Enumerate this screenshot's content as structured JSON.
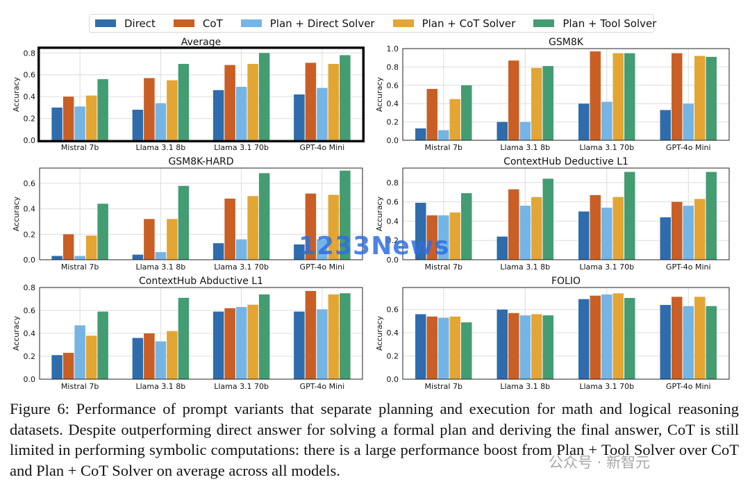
{
  "legend": [
    {
      "name": "Direct",
      "color": "#2f6cab"
    },
    {
      "name": "CoT",
      "color": "#c95f25"
    },
    {
      "name": "Plan + Direct Solver",
      "color": "#75b5e6"
    },
    {
      "name": "Plan + CoT Solver",
      "color": "#e3a534"
    },
    {
      "name": "Plan + Tool Solver",
      "color": "#449c72"
    }
  ],
  "chart_data": [
    {
      "type": "bar",
      "title": "Average",
      "ylabel": "Accuracy",
      "highlighted": true,
      "categories": [
        "Mistral 7b",
        "Llama 3.1 8b",
        "Llama 3.1 70b",
        "GPT-4o Mini"
      ],
      "ylim": [
        0,
        0.84
      ],
      "yticks": [
        0.0,
        0.2,
        0.4,
        0.6,
        0.8
      ],
      "ytick_labels": [
        "0.0",
        "0.2",
        "0.4",
        "0.6",
        "0.8"
      ],
      "series": [
        {
          "name": "Direct",
          "values": [
            0.3,
            0.28,
            0.46,
            0.42
          ]
        },
        {
          "name": "CoT",
          "values": [
            0.4,
            0.57,
            0.69,
            0.71
          ]
        },
        {
          "name": "Plan + Direct Solver",
          "values": [
            0.31,
            0.34,
            0.49,
            0.48
          ]
        },
        {
          "name": "Plan + CoT Solver",
          "values": [
            0.41,
            0.55,
            0.7,
            0.7
          ]
        },
        {
          "name": "Plan + Tool Solver",
          "values": [
            0.56,
            0.7,
            0.8,
            0.78
          ]
        }
      ]
    },
    {
      "type": "bar",
      "title": "GSM8K",
      "ylabel": "Accuracy",
      "categories": [
        "Mistral 7b",
        "Llama 3.1 8b",
        "Llama 3.1 70b",
        "GPT-4o Mini"
      ],
      "ylim": [
        0,
        1.0
      ],
      "yticks": [
        0.0,
        0.2,
        0.4,
        0.6,
        0.8,
        1.0
      ],
      "ytick_labels": [
        "0.0",
        "0.2",
        "0.4",
        "0.6",
        "0.8",
        "1.0"
      ],
      "series": [
        {
          "name": "Direct",
          "values": [
            0.13,
            0.2,
            0.4,
            0.33
          ]
        },
        {
          "name": "CoT",
          "values": [
            0.56,
            0.87,
            0.97,
            0.95
          ]
        },
        {
          "name": "Plan + Direct Solver",
          "values": [
            0.11,
            0.2,
            0.42,
            0.4
          ]
        },
        {
          "name": "Plan + CoT Solver",
          "values": [
            0.45,
            0.79,
            0.95,
            0.92
          ]
        },
        {
          "name": "Plan + Tool Solver",
          "values": [
            0.6,
            0.81,
            0.95,
            0.91
          ]
        }
      ]
    },
    {
      "type": "bar",
      "title": "GSM8K-HARD",
      "ylabel": "Accuracy",
      "categories": [
        "Mistral 7b",
        "Llama 3.1 8b",
        "Llama 3.1 70b",
        "GPT-4o Mini"
      ],
      "ylim": [
        0,
        0.72
      ],
      "yticks": [
        0.0,
        0.2,
        0.4,
        0.6
      ],
      "ytick_labels": [
        "0.0",
        "0.2",
        "0.4",
        "0.6"
      ],
      "series": [
        {
          "name": "Direct",
          "values": [
            0.03,
            0.04,
            0.13,
            0.12
          ]
        },
        {
          "name": "CoT",
          "values": [
            0.2,
            0.32,
            0.48,
            0.52
          ]
        },
        {
          "name": "Plan + Direct Solver",
          "values": [
            0.03,
            0.06,
            0.16,
            0.16
          ]
        },
        {
          "name": "Plan + CoT Solver",
          "values": [
            0.19,
            0.32,
            0.5,
            0.51
          ]
        },
        {
          "name": "Plan + Tool Solver",
          "values": [
            0.44,
            0.58,
            0.68,
            0.7
          ]
        }
      ]
    },
    {
      "type": "bar",
      "title": "ContextHub Deductive L1",
      "ylabel": "Accuracy",
      "categories": [
        "Mistral 7b",
        "Llama 3.1 8b",
        "Llama 3.1 70b",
        "GPT-4o Mini"
      ],
      "ylim": [
        0,
        0.95
      ],
      "yticks": [
        0.0,
        0.2,
        0.4,
        0.6,
        0.8
      ],
      "ytick_labels": [
        "0.0",
        "0.2",
        "0.4",
        "0.6",
        "0.8"
      ],
      "series": [
        {
          "name": "Direct",
          "values": [
            0.59,
            0.24,
            0.5,
            0.44
          ]
        },
        {
          "name": "CoT",
          "values": [
            0.46,
            0.73,
            0.67,
            0.6
          ]
        },
        {
          "name": "Plan + Direct Solver",
          "values": [
            0.46,
            0.56,
            0.54,
            0.56
          ]
        },
        {
          "name": "Plan + CoT Solver",
          "values": [
            0.49,
            0.65,
            0.65,
            0.63
          ]
        },
        {
          "name": "Plan + Tool Solver",
          "values": [
            0.69,
            0.84,
            0.91,
            0.91
          ]
        }
      ]
    },
    {
      "type": "bar",
      "title": "ContextHub Abductive L1",
      "ylabel": "Accuracy",
      "categories": [
        "Mistral 7b",
        "Llama 3.1 8b",
        "Llama 3.1 70b",
        "GPT-4o Mini"
      ],
      "ylim": [
        0,
        0.8
      ],
      "yticks": [
        0.0,
        0.2,
        0.4,
        0.6,
        0.8
      ],
      "ytick_labels": [
        "0.0",
        "0.2",
        "0.4",
        "0.6",
        "0.8"
      ],
      "series": [
        {
          "name": "Direct",
          "values": [
            0.21,
            0.36,
            0.59,
            0.59
          ]
        },
        {
          "name": "CoT",
          "values": [
            0.23,
            0.4,
            0.62,
            0.77
          ]
        },
        {
          "name": "Plan + Direct Solver",
          "values": [
            0.47,
            0.33,
            0.63,
            0.61
          ]
        },
        {
          "name": "Plan + CoT Solver",
          "values": [
            0.38,
            0.42,
            0.65,
            0.74
          ]
        },
        {
          "name": "Plan + Tool Solver",
          "values": [
            0.59,
            0.71,
            0.74,
            0.75
          ]
        }
      ]
    },
    {
      "type": "bar",
      "title": "FOLIO",
      "ylabel": "Accuracy",
      "categories": [
        "Mistral 7b",
        "Llama 3.1 8b",
        "Llama 3.1 70b",
        "GPT-4o Mini"
      ],
      "ylim": [
        0,
        0.79
      ],
      "yticks": [
        0.0,
        0.2,
        0.4,
        0.6
      ],
      "ytick_labels": [
        "0.0",
        "0.2",
        "0.4",
        "0.6"
      ],
      "series": [
        {
          "name": "Direct",
          "values": [
            0.56,
            0.6,
            0.69,
            0.64
          ]
        },
        {
          "name": "CoT",
          "values": [
            0.54,
            0.57,
            0.72,
            0.71
          ]
        },
        {
          "name": "Plan + Direct Solver",
          "values": [
            0.53,
            0.55,
            0.73,
            0.63
          ]
        },
        {
          "name": "Plan + CoT Solver",
          "values": [
            0.54,
            0.56,
            0.74,
            0.71
          ]
        },
        {
          "name": "Plan + Tool Solver",
          "values": [
            0.49,
            0.55,
            0.7,
            0.63
          ]
        }
      ]
    }
  ],
  "caption": "Figure 6: Performance of prompt variants that separate planning and execution for math and logical reasoning datasets. Despite outperforming direct answer for solving a formal plan and deriving the final answer, CoT is still limited in performing symbolic computations: there is a large performance boost from Plan + Tool Solver over CoT and Plan + CoT Solver on average across all models.",
  "watermark_logo": "1233News",
  "watermark_wechat": "公众号 · 新智元"
}
